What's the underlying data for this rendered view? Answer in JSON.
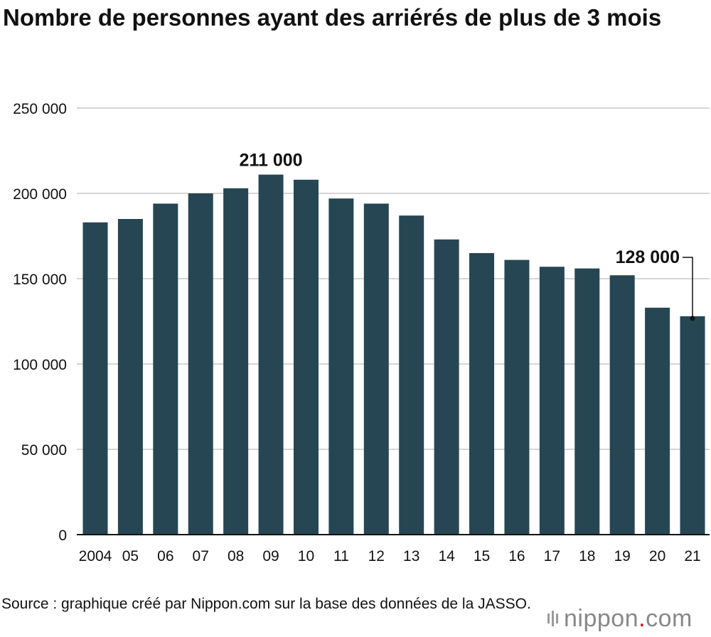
{
  "chart_data": {
    "type": "bar",
    "title": "Nombre de personnes ayant des arriérés de plus de 3 mois",
    "categories": [
      "2004",
      "05",
      "06",
      "07",
      "08",
      "09",
      "10",
      "11",
      "12",
      "13",
      "14",
      "15",
      "16",
      "17",
      "18",
      "19",
      "20",
      "21"
    ],
    "values": [
      183000,
      185000,
      194000,
      200000,
      203000,
      211000,
      208000,
      197000,
      194000,
      187000,
      173000,
      165000,
      161000,
      157000,
      156000,
      152000,
      133000,
      128000
    ],
    "ylim": [
      0,
      250000
    ],
    "yticks": [
      0,
      50000,
      100000,
      150000,
      200000,
      250000
    ],
    "ytick_labels": [
      "0",
      "50 000",
      "100 000",
      "150 000",
      "200 000",
      "250 000"
    ],
    "grid": true,
    "bar_color": "#264653",
    "annotations": [
      {
        "category": "09",
        "label": "211 000"
      },
      {
        "category": "21",
        "label": "128 000"
      }
    ]
  },
  "source": "Source : graphique créé par Nippon.com sur la base des données de la JASSO.",
  "logo": {
    "name": "nippon",
    "dot": ".",
    "suffix": "com"
  }
}
